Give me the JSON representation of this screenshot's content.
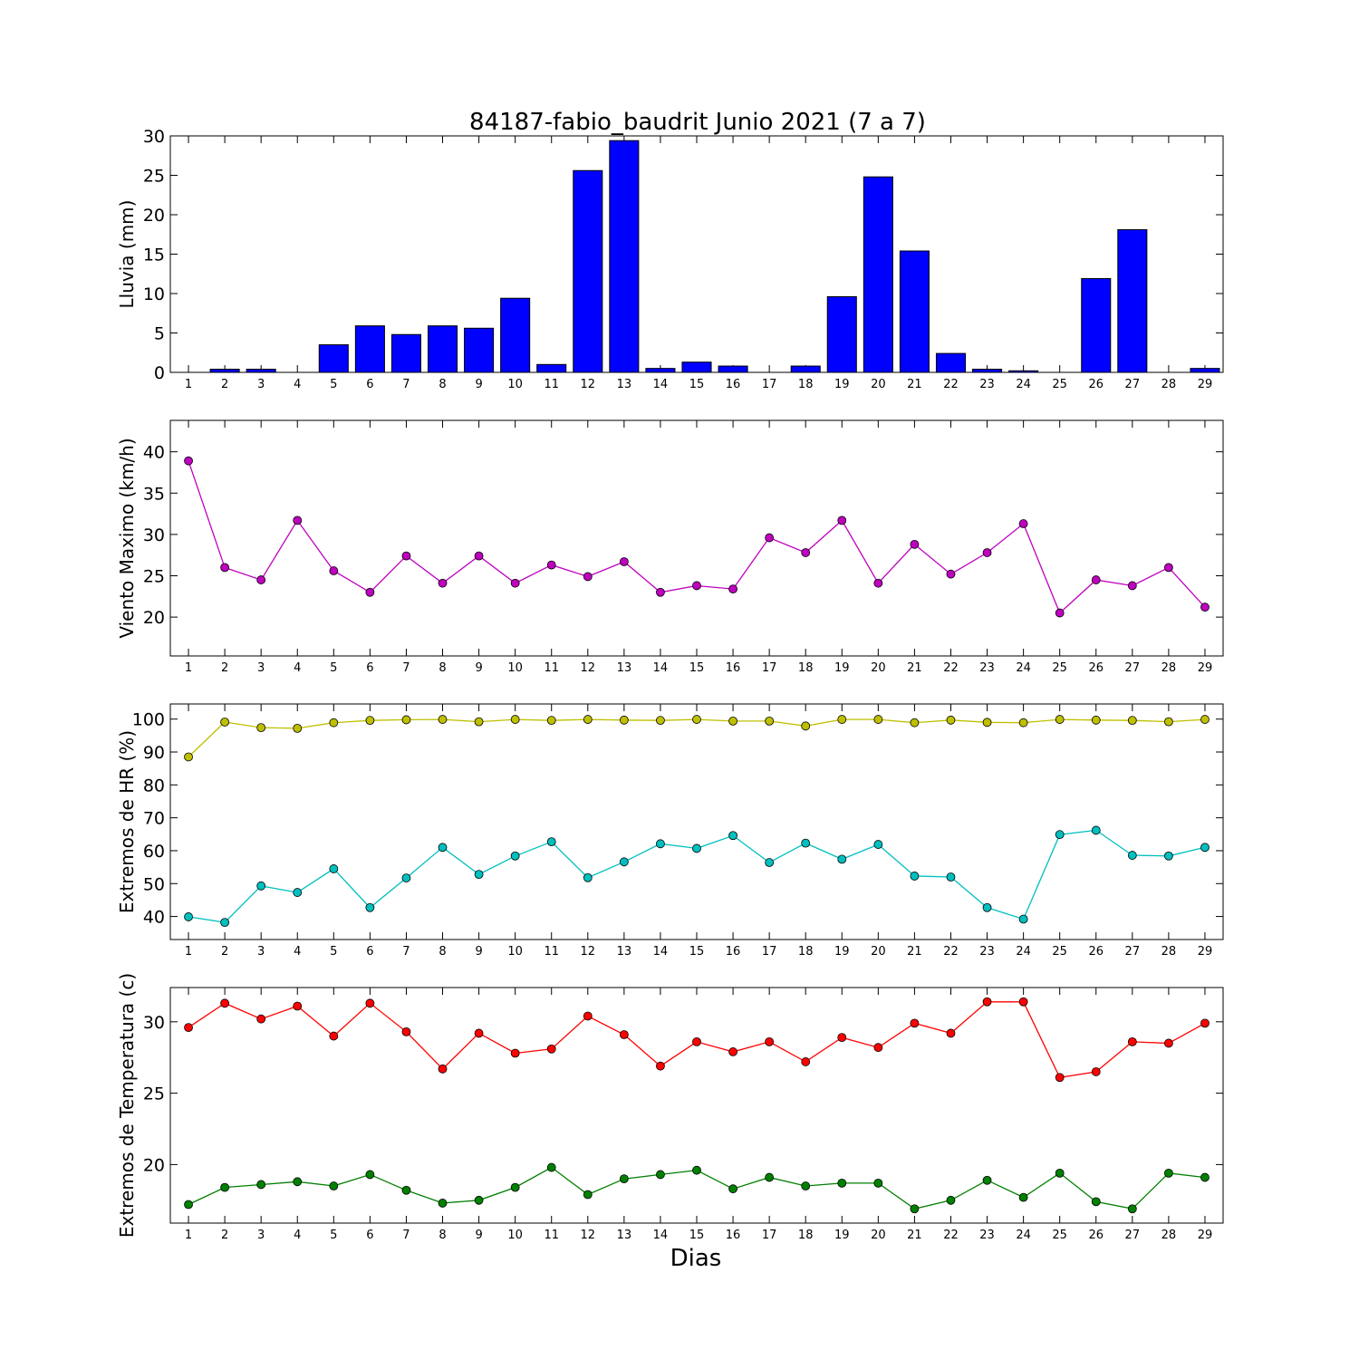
{
  "figure": {
    "title": "84187-fabio_baudrit Junio 2021  (7 a 7)",
    "xlabel": "Dias"
  },
  "chart_data": [
    {
      "type": "bar",
      "ylabel": "Lluvia (mm)",
      "ylim": [
        0,
        30
      ],
      "yticks": [
        0,
        5,
        10,
        15,
        20,
        25,
        30
      ],
      "x": [
        1,
        2,
        3,
        4,
        5,
        6,
        7,
        8,
        9,
        10,
        11,
        12,
        13,
        14,
        15,
        16,
        17,
        18,
        19,
        20,
        21,
        22,
        23,
        24,
        25,
        26,
        27,
        28,
        29
      ],
      "series": [
        {
          "color": "#0000ff",
          "values": [
            0,
            0.4,
            0.4,
            0,
            3.5,
            5.9,
            4.8,
            5.9,
            5.6,
            9.4,
            1.0,
            25.6,
            29.4,
            0.5,
            1.3,
            0.8,
            0,
            0.8,
            9.6,
            24.8,
            15.4,
            2.4,
            0.4,
            0.2,
            0,
            11.9,
            18.1,
            0,
            0.5
          ]
        }
      ]
    },
    {
      "type": "line",
      "ylabel": "Viento Maximo (km/h)",
      "ylim": [
        15.3,
        43.8
      ],
      "yticks": [
        20,
        25,
        30,
        35,
        40
      ],
      "x": [
        1,
        2,
        3,
        4,
        5,
        6,
        7,
        8,
        9,
        10,
        11,
        12,
        13,
        14,
        15,
        16,
        17,
        18,
        19,
        20,
        21,
        22,
        23,
        24,
        25,
        26,
        27,
        28,
        29
      ],
      "series": [
        {
          "color": "#bf00bf",
          "values": [
            38.9,
            26.0,
            24.5,
            31.7,
            25.6,
            23.0,
            27.4,
            24.1,
            27.4,
            24.1,
            26.3,
            24.9,
            26.7,
            23.0,
            23.8,
            23.4,
            29.6,
            27.8,
            31.7,
            24.1,
            28.8,
            25.2,
            27.8,
            31.3,
            20.5,
            24.5,
            23.8,
            26.0,
            21.2
          ]
        }
      ]
    },
    {
      "type": "line",
      "ylabel": "Extremos de HR (%)",
      "ylim": [
        33,
        104.6
      ],
      "yticks": [
        40,
        50,
        60,
        70,
        80,
        90,
        100
      ],
      "x": [
        1,
        2,
        3,
        4,
        5,
        6,
        7,
        8,
        9,
        10,
        11,
        12,
        13,
        14,
        15,
        16,
        17,
        18,
        19,
        20,
        21,
        22,
        23,
        24,
        25,
        26,
        27,
        28,
        29
      ],
      "series": [
        {
          "color": "#bfbf00",
          "values": [
            88.5,
            99.1,
            97.4,
            97.2,
            98.9,
            99.6,
            99.8,
            99.9,
            99.2,
            99.9,
            99.6,
            99.9,
            99.7,
            99.6,
            99.9,
            99.4,
            99.4,
            97.9,
            99.9,
            99.9,
            98.9,
            99.7,
            99.0,
            98.9,
            99.9,
            99.7,
            99.6,
            99.2,
            99.9
          ]
        },
        {
          "color": "#00bfbf",
          "values": [
            39.9,
            38.2,
            49.3,
            47.3,
            54.5,
            42.7,
            51.7,
            61.0,
            52.8,
            58.4,
            62.7,
            51.8,
            56.6,
            62.1,
            60.7,
            64.6,
            56.4,
            62.3,
            57.4,
            61.9,
            52.3,
            52.0,
            42.7,
            39.2,
            64.9,
            66.2,
            58.6,
            58.4,
            61.0
          ]
        }
      ]
    },
    {
      "type": "line",
      "ylabel": "Extremos de Temperatura (c)",
      "ylim": [
        15.9,
        32.4
      ],
      "yticks": [
        20,
        25,
        30
      ],
      "x": [
        1,
        2,
        3,
        4,
        5,
        6,
        7,
        8,
        9,
        10,
        11,
        12,
        13,
        14,
        15,
        16,
        17,
        18,
        19,
        20,
        21,
        22,
        23,
        24,
        25,
        26,
        27,
        28,
        29
      ],
      "series": [
        {
          "color": "#ff0000",
          "values": [
            29.6,
            31.3,
            30.2,
            31.1,
            29.0,
            31.3,
            29.3,
            26.7,
            29.2,
            27.8,
            28.1,
            30.4,
            29.1,
            26.9,
            28.6,
            27.9,
            28.6,
            27.2,
            28.9,
            28.2,
            29.9,
            29.2,
            31.4,
            31.4,
            26.1,
            26.5,
            28.6,
            28.5,
            29.9
          ]
        },
        {
          "color": "#008000",
          "values": [
            17.2,
            18.4,
            18.6,
            18.8,
            18.5,
            19.3,
            18.2,
            17.3,
            17.5,
            18.4,
            19.8,
            17.9,
            19.0,
            19.3,
            19.6,
            18.3,
            19.1,
            18.5,
            18.7,
            18.7,
            16.9,
            17.5,
            18.9,
            17.7,
            19.4,
            17.4,
            16.9,
            19.4,
            19.1
          ]
        }
      ]
    }
  ]
}
